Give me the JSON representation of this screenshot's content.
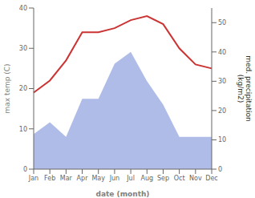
{
  "chart_data": {
    "type": "line",
    "categories": [
      "Jan",
      "Feb",
      "Mar",
      "Apr",
      "May",
      "Jun",
      "Jul",
      "Aug",
      "Sep",
      "Oct",
      "Nov",
      "Dec"
    ],
    "series": [
      {
        "type": "area",
        "axis": "y2",
        "color": "#b0bce8",
        "values": [
          12,
          16,
          11,
          24,
          24,
          36,
          40,
          30,
          22,
          11,
          11,
          11
        ]
      },
      {
        "type": "line",
        "color": "#cc3333",
        "values": [
          19,
          22,
          27,
          34,
          34,
          35,
          37,
          38,
          36,
          30,
          26,
          25
        ]
      }
    ],
    "xlabel": "date (month)",
    "ylabel": "max temp (C)",
    "y2label": "med. precipitation\n(kg/m2)",
    "ylim": [
      0,
      40
    ],
    "yticks": [
      0,
      10,
      20,
      30,
      40
    ],
    "y2lim": [
      0,
      55
    ],
    "y2ticks": [
      0,
      10,
      20,
      30,
      40,
      50
    ],
    "grid": false
  }
}
